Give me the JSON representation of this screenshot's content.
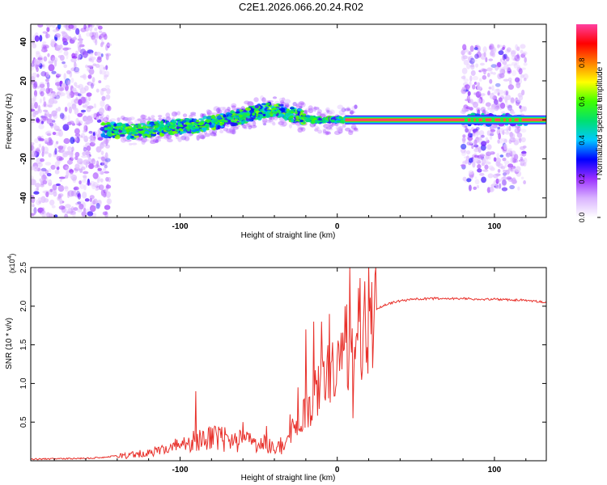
{
  "title": "C2E1.2026.066.20.24.R02",
  "chart_data": [
    {
      "type": "heatmap",
      "name": "spectrogram",
      "xlabel": "Height of straight line (km)",
      "ylabel": "Frequency (Hz)",
      "xlim": [
        -195,
        133
      ],
      "ylim": [
        -50,
        49
      ],
      "xticks": [
        {
          "value": -100,
          "label": "-100"
        },
        {
          "value": 0,
          "label": "0"
        },
        {
          "value": 100,
          "label": "100"
        }
      ],
      "yticks": [
        {
          "value": -40,
          "label": "-40"
        },
        {
          "value": -20,
          "label": "-20"
        },
        {
          "value": 0,
          "label": "0"
        },
        {
          "value": 20,
          "label": "20"
        },
        {
          "value": 40,
          "label": "40"
        }
      ],
      "ridge": {
        "description": "center frequency of dominant signal vs height",
        "points": [
          [
            -150,
            -5
          ],
          [
            -130,
            -6
          ],
          [
            -110,
            -4
          ],
          [
            -90,
            -3
          ],
          [
            -70,
            0
          ],
          [
            -55,
            3
          ],
          [
            -45,
            5
          ],
          [
            -35,
            4
          ],
          [
            -25,
            2
          ],
          [
            -15,
            0
          ],
          [
            0,
            0
          ],
          [
            10,
            0
          ],
          [
            130,
            0
          ]
        ]
      },
      "colorbar": {
        "label": "Normalized spectral amplitude",
        "range": [
          0,
          1
        ],
        "ticks": [
          {
            "value": 0.0,
            "label": "0.0"
          },
          {
            "value": 0.2,
            "label": "0.2"
          },
          {
            "value": 0.4,
            "label": "0.4"
          },
          {
            "value": 0.6,
            "label": "0.6"
          },
          {
            "value": 0.8,
            "label": "0.8"
          }
        ],
        "colors": [
          "#ffffff",
          "#d9b3ff",
          "#9b30ff",
          "#0000ff",
          "#00c8ff",
          "#00e070",
          "#40ff00",
          "#ffff00",
          "#ff8000",
          "#ff0000",
          "#ff40a0"
        ]
      }
    },
    {
      "type": "line",
      "name": "snr",
      "xlabel": "Height of straight line (km)",
      "ylabel": "SNR (10 * v/v)",
      "yscale_label": "(x10",
      "yscale_exp": "4",
      "xlim": [
        -195,
        133
      ],
      "ylim": [
        0,
        2.5
      ],
      "color": "#e8302a",
      "xticks": [
        {
          "value": -100,
          "label": "-100"
        },
        {
          "value": 0,
          "label": "0"
        },
        {
          "value": 100,
          "label": "100"
        }
      ],
      "yticks": [
        {
          "value": 0.5,
          "label": "0.5"
        },
        {
          "value": 1.0,
          "label": "1.0"
        },
        {
          "value": 1.5,
          "label": "1.5"
        },
        {
          "value": 2.0,
          "label": "2.0"
        },
        {
          "value": 2.5,
          "label": "2.5"
        }
      ],
      "x": [
        -195,
        -160,
        -140,
        -120,
        -110,
        -100,
        -90,
        -80,
        -70,
        -60,
        -50,
        -45,
        -40,
        -35,
        -30,
        -25,
        -20,
        -15,
        -10,
        -5,
        0,
        5,
        8,
        10,
        15,
        20,
        25,
        30,
        40,
        50,
        60,
        70,
        80,
        90,
        100,
        110,
        120,
        133
      ],
      "y": [
        0.02,
        0.03,
        0.06,
        0.1,
        0.15,
        0.2,
        0.25,
        0.3,
        0.28,
        0.27,
        0.25,
        0.2,
        0.15,
        0.2,
        0.35,
        0.5,
        0.65,
        0.8,
        1.0,
        1.15,
        1.3,
        1.4,
        1.55,
        1.6,
        1.7,
        1.85,
        1.95,
        2.02,
        2.07,
        2.09,
        2.1,
        2.1,
        2.1,
        2.09,
        2.09,
        2.08,
        2.08,
        2.05
      ],
      "spikes": [
        [
          -90,
          0.9
        ],
        [
          -60,
          0.5
        ],
        [
          -45,
          0.45
        ],
        [
          -30,
          0.6
        ],
        [
          -25,
          0.95
        ],
        [
          -20,
          1.7
        ],
        [
          -15,
          1.8
        ],
        [
          -10,
          1.8
        ],
        [
          -5,
          1.9
        ],
        [
          5,
          2.0
        ],
        [
          8,
          2.5
        ],
        [
          10,
          0.55
        ],
        [
          12,
          1.6
        ]
      ],
      "xtick_labels_note": "same ticks as top"
    }
  ]
}
